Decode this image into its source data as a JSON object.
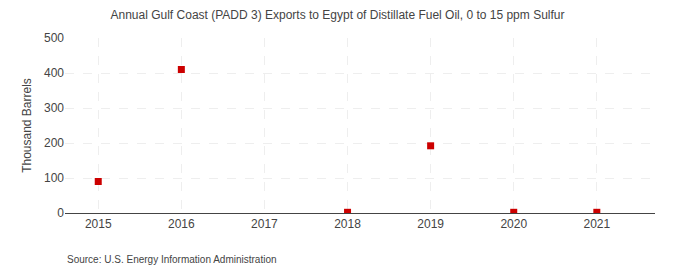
{
  "chart_data": {
    "type": "scatter",
    "title": "Annual Gulf Coast (PADD 3) Exports to Egypt of Distillate Fuel Oil, 0 to 15 ppm Sulfur",
    "ylabel": "Thousand Barrels",
    "annotations": [
      "Source: U.S. Energy Information Administration"
    ],
    "x": [
      2015,
      2016,
      2018,
      2019,
      2020,
      2021
    ],
    "values": [
      90,
      410,
      2,
      192,
      2,
      2
    ],
    "color": "#cc0000",
    "marker": "square",
    "xlim": [
      2014.6,
      2021.7
    ],
    "xticks": [
      2015,
      2016,
      2017,
      2018,
      2019,
      2020,
      2021
    ],
    "ylim": [
      0,
      500
    ],
    "yticks": [
      0,
      100,
      200,
      300,
      400,
      500
    ],
    "grid": true
  }
}
